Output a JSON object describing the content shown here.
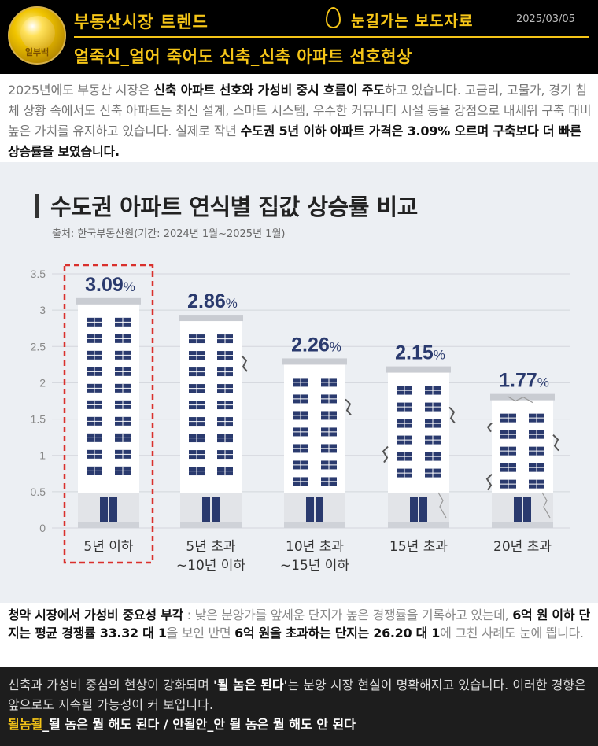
{
  "header": {
    "logo_text": "일부백",
    "title": "부동산시장 트렌드",
    "badge": "눈길가는 보도자료",
    "date": "2025/03/05",
    "subtitle": "얼죽신_얼어 죽어도 신축_신축 아파트 선호현상"
  },
  "intro": {
    "p1": "2025년에도 부동산 시장은 ",
    "b1": "신축 아파트 선호와 가성비 중시 흐름이 주도",
    "p2": "하고 있습니다. 고금리, 고물가, 경기 침체 상황 속에서도 신축 아파트는 최신 설계, 스마트 시스템, 우수한 커뮤니티 시설 등을 강점으로 내세워 구축 대비 높은 가치를 유지하고 있습니다. 실제로 작년 ",
    "b2": "수도권 5년 이하 아파트 가격은 3.09% 오르며 구축보다 더 빠른 상승률을 보였습니다."
  },
  "chart": {
    "title": "수도권 아파트 연식별 집값 상승률 비교",
    "source": "출처: 한국부동산원(기간: 2024년 1월~2025년 1월)"
  },
  "chart_data": {
    "type": "bar",
    "title": "수도권 아파트 연식별 집값 상승률 비교",
    "categories": [
      [
        "5년 이하"
      ],
      [
        "5년 초과",
        "~10년 이하"
      ],
      [
        "10년 초과",
        "~15년 이하"
      ],
      [
        "15년 초과"
      ],
      [
        "20년 초과"
      ]
    ],
    "values": [
      3.09,
      2.86,
      2.26,
      2.15,
      1.77
    ],
    "value_labels": [
      "3.09",
      "2.86",
      "2.26",
      "2.15",
      "1.77"
    ],
    "unit_suffix": "%",
    "y_ticks": [
      "0",
      "0.5",
      "1",
      "1.5",
      "2",
      "2.5",
      "3",
      "3.5"
    ],
    "ylim": [
      0,
      3.5
    ],
    "highlight_index": 0,
    "colors": {
      "value": "#2a3a6e",
      "window": "#2a3a6e",
      "building": "#ffffff",
      "roof": "#c9ccd2",
      "highlight": "#d9302c"
    }
  },
  "subscription": {
    "b1": "청약 시장에서 가성비 중요성 부각",
    "p1": " : 낮은 분양가를 앞세운 단지가 높은 경쟁률을 기록하고 있는데, ",
    "b2": "6억 원 이하 단지는 평균 경쟁률 33.32 대 1",
    "p2": "을 보인 반면 ",
    "b3": "6억 원을 초과하는 단지는 26.20 대 1",
    "p3": "에 그친 사례도 눈에 띕니다."
  },
  "footer": {
    "p1": "신축과 가성비 중심의 현상이 강화되며 ",
    "b1": "'될 놈은 된다'",
    "p2": "는 분양 시장 현실이 명확해지고 있습니다. 이러한 경향은 앞으로도 지속될 가능성이 커 보입니다.",
    "y1": "될놈될",
    "last": "_될 놈은 뭘 해도 된다 / 안될안_안 될 놈은 뭘 해도 안 된다"
  }
}
